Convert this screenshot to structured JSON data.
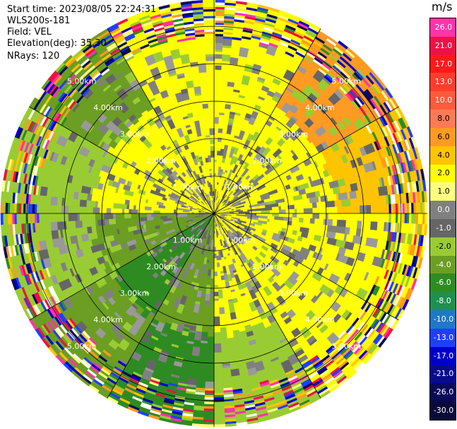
{
  "header": {
    "start_time": "Start time: 2023/08/05 22:24:31",
    "instrument": "WLS200s-181",
    "field": "Field: VEL",
    "elevation": "Elevation(deg): 35.30",
    "nrays": "NRays: 120"
  },
  "colorbar": {
    "unit": "m/s",
    "bins": [
      {
        "label": "26.0",
        "color": "#ff33aa"
      },
      {
        "label": "21.0",
        "color": "#ee1144"
      },
      {
        "label": "17.0",
        "color": "#ff1a1a"
      },
      {
        "label": "13.0",
        "color": "#ff3d2e"
      },
      {
        "label": "10.0",
        "color": "#ff5a3c"
      },
      {
        "label": "8.0",
        "color": "#ff7a55"
      },
      {
        "label": "6.0",
        "color": "#ff9a22"
      },
      {
        "label": "4.0",
        "color": "#ffc400"
      },
      {
        "label": "2.0",
        "color": "#ffff00"
      },
      {
        "label": "1.0",
        "color": "#ffff80"
      },
      {
        "label": "0.0",
        "color": "#808080"
      },
      {
        "label": "-1.0",
        "color": "#666666"
      },
      {
        "label": "-2.0",
        "color": "#99cc33"
      },
      {
        "label": "-4.0",
        "color": "#6b9e22"
      },
      {
        "label": "-6.0",
        "color": "#2e8b22"
      },
      {
        "label": "-8.0",
        "color": "#1f8f4f"
      },
      {
        "label": "-10.0",
        "color": "#1f78c8"
      },
      {
        "label": "-13.0",
        "color": "#1f3fff"
      },
      {
        "label": "-17.0",
        "color": "#0000cc"
      },
      {
        "label": "-21.0",
        "color": "#0a0a8f"
      },
      {
        "label": "-26.0",
        "color": "#0a0a5a"
      },
      {
        "label": "-30.0",
        "color": "#0a0a3a"
      }
    ]
  },
  "chart_data": {
    "type": "heatmap",
    "title": "",
    "field": "VEL",
    "ring_labels": [
      "1.00km",
      "2.00km",
      "3.00km",
      "4.00km",
      "5.00km"
    ],
    "ring_km": [
      1,
      2,
      3,
      4,
      5
    ],
    "range_km": 5.7,
    "grid_spokes_deg": 30,
    "nrays": 120,
    "sectors": [
      {
        "az": [
          0,
          30
        ],
        "inner": "#ffff00",
        "outer": "#ffff00"
      },
      {
        "az": [
          30,
          60
        ],
        "inner": "#ffff00",
        "outer": "#ff9a22"
      },
      {
        "az": [
          60,
          90
        ],
        "inner": "#ffff00",
        "outer": "#ffc400"
      },
      {
        "az": [
          90,
          120
        ],
        "inner": "#ffff00",
        "outer": "#ffff00"
      },
      {
        "az": [
          120,
          150
        ],
        "inner": "#ffff00",
        "outer": "#ffff00"
      },
      {
        "az": [
          150,
          180
        ],
        "inner": "#ffff00",
        "outer": "#99cc33"
      },
      {
        "az": [
          180,
          210
        ],
        "inner": "#6b9e22",
        "outer": "#2e8b22"
      },
      {
        "az": [
          210,
          240
        ],
        "inner": "#2e8b22",
        "outer": "#6b9e22"
      },
      {
        "az": [
          240,
          270
        ],
        "inner": "#6b9e22",
        "outer": "#99cc33"
      },
      {
        "az": [
          270,
          300
        ],
        "inner": "#ffff00",
        "outer": "#99cc33"
      },
      {
        "az": [
          300,
          330
        ],
        "inner": "#ffff00",
        "outer": "#6b9e22"
      },
      {
        "az": [
          330,
          360
        ],
        "inner": "#ffff00",
        "outer": "#ffff00"
      }
    ]
  }
}
